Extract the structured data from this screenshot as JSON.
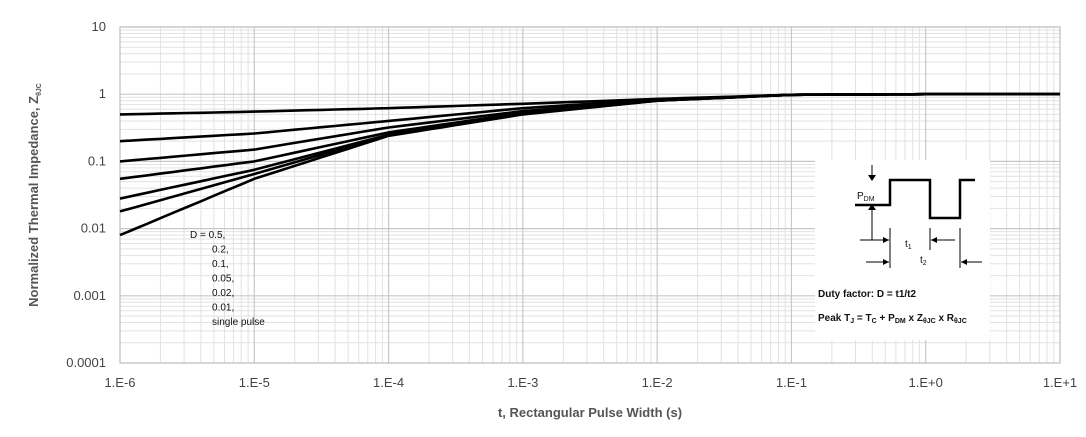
{
  "chart_data": {
    "type": "line",
    "title": "",
    "xlabel": "t, Rectangular Pulse Width (s)",
    "ylabel_main": "Normalized Thermal Impedance, Z",
    "ylabel_sub": "θJC",
    "x_scale": "log",
    "y_scale": "log",
    "xlim": [
      1e-06,
      10
    ],
    "ylim": [
      0.0001,
      10
    ],
    "grid": true,
    "x_ticks": [
      1e-06,
      1e-05,
      0.0001,
      0.001,
      0.01,
      0.1,
      1,
      10
    ],
    "x_tick_labels": [
      "1.E-6",
      "1.E-5",
      "1.E-4",
      "1.E-3",
      "1.E-2",
      "1.E-1",
      "1.E+0",
      "1.E+1"
    ],
    "y_ticks": [
      10,
      1,
      0.1,
      0.01,
      0.001,
      0.0001
    ],
    "y_tick_labels": [
      "10",
      "1",
      "0.1",
      "0.01",
      "0.001",
      "0.0001"
    ],
    "series": [
      {
        "name": "0.5",
        "x": [
          1e-06,
          1e-05,
          0.0001,
          0.001,
          0.01,
          0.1,
          1,
          10
        ],
        "y": [
          0.5,
          0.55,
          0.62,
          0.72,
          0.85,
          0.98,
          1.0,
          1.0
        ]
      },
      {
        "name": "0.2",
        "x": [
          1e-06,
          1e-05,
          0.0001,
          0.001,
          0.01,
          0.1,
          1,
          10
        ],
        "y": [
          0.2,
          0.26,
          0.4,
          0.62,
          0.83,
          0.98,
          1.0,
          1.0
        ]
      },
      {
        "name": "0.1",
        "x": [
          1e-06,
          1e-05,
          0.0001,
          0.001,
          0.01,
          0.1,
          1,
          10
        ],
        "y": [
          0.1,
          0.15,
          0.32,
          0.56,
          0.82,
          0.98,
          1.0,
          1.0
        ]
      },
      {
        "name": "0.05",
        "x": [
          1e-06,
          1e-05,
          0.0001,
          0.001,
          0.01,
          0.1,
          1,
          10
        ],
        "y": [
          0.055,
          0.1,
          0.27,
          0.53,
          0.81,
          0.98,
          1.0,
          1.0
        ]
      },
      {
        "name": "0.02",
        "x": [
          1e-06,
          1e-05,
          0.0001,
          0.001,
          0.01,
          0.1,
          1,
          10
        ],
        "y": [
          0.028,
          0.075,
          0.25,
          0.52,
          0.8,
          0.98,
          1.0,
          1.0
        ]
      },
      {
        "name": "0.01",
        "x": [
          1e-06,
          1e-05,
          0.0001,
          0.001,
          0.01,
          0.1,
          1,
          10
        ],
        "y": [
          0.018,
          0.065,
          0.245,
          0.51,
          0.8,
          0.98,
          1.0,
          1.0
        ]
      },
      {
        "name": "single pulse",
        "x": [
          1e-06,
          1e-05,
          0.0001,
          0.001,
          0.01,
          0.1,
          1,
          10
        ],
        "y": [
          0.008,
          0.055,
          0.24,
          0.5,
          0.8,
          0.98,
          1.0,
          1.0
        ]
      }
    ],
    "legend_text": [
      "D = 0.5,",
      "0.2,",
      "0.1,",
      "0.05,",
      "0.02,",
      "0.01,",
      "single pulse"
    ],
    "inset": {
      "p_label": "P",
      "p_sub": "DM",
      "t1_label": "t",
      "t1_sub": "1",
      "t2_label": "t",
      "t2_sub": "2",
      "duty_factor": "Duty factor: D = t1/t2",
      "peak_prefix": "Peak T",
      "peak_sub_j": "J",
      "peak_eq1": " = T",
      "peak_sub_c": "C",
      "peak_plus": " + P",
      "peak_sub_dm": "DM",
      "peak_x_z": " x Z",
      "peak_sub_theta1": "θJC",
      "peak_x_r": " x R",
      "peak_sub_theta2": "θJC"
    },
    "colors": {
      "line": "#000000",
      "grid_major": "#c8c8c8",
      "grid_minor": "#e2e2e2",
      "axis_text": "#444444"
    }
  }
}
